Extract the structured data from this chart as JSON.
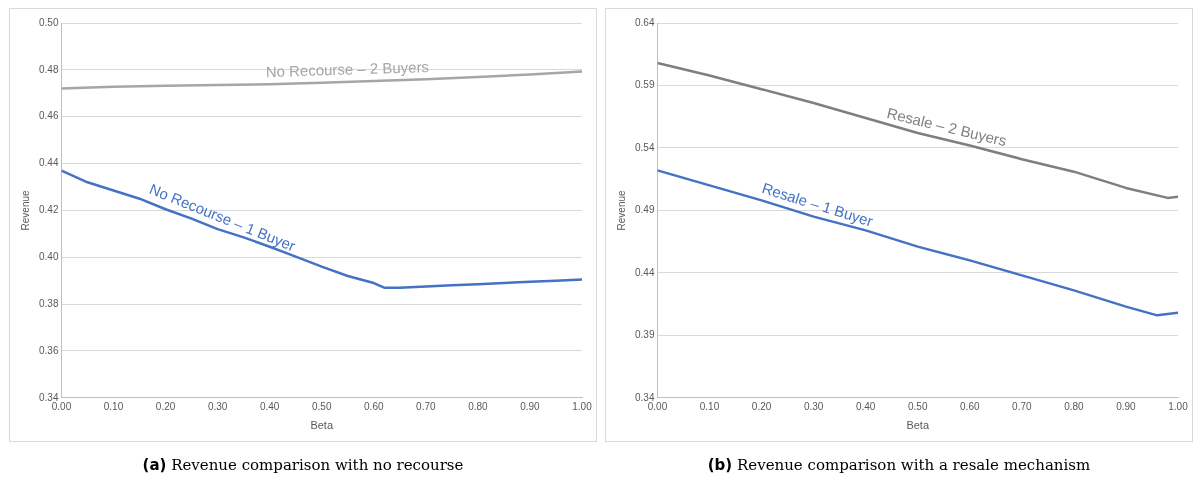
{
  "chart_data": [
    {
      "type": "line",
      "title": "(a) Revenue comparison with no recourse",
      "xlabel": "Beta",
      "ylabel": "Revenue",
      "xlim": [
        0,
        1
      ],
      "xticks": [
        {
          "value": 0,
          "label": "0.00"
        },
        {
          "value": 0.1,
          "label": "0.10"
        },
        {
          "value": 0.2,
          "label": "0.20"
        },
        {
          "value": 0.3,
          "label": "0.30"
        },
        {
          "value": 0.4,
          "label": "0.40"
        },
        {
          "value": 0.5,
          "label": "0.50"
        },
        {
          "value": 0.6,
          "label": "0.60"
        },
        {
          "value": 0.7,
          "label": "0.70"
        },
        {
          "value": 0.8,
          "label": "0.80"
        },
        {
          "value": 0.9,
          "label": "0.90"
        },
        {
          "value": 1,
          "label": "1.00"
        }
      ],
      "ylim": [
        0.34,
        0.5
      ],
      "yticks": [
        0.34,
        0.36,
        0.38,
        {
          "value": 0.4,
          "label": "0.40"
        },
        0.42,
        0.44,
        0.46,
        0.48,
        {
          "value": 0.5,
          "label": "0.50"
        }
      ],
      "grid": "y",
      "legend": false,
      "marker": "none",
      "line_style": "solid",
      "series": [
        {
          "name": "No Recourse – 2 Buyers",
          "color": "#a6a6a6",
          "x": [
            0,
            0.1,
            0.2,
            0.3,
            0.4,
            0.5,
            0.6,
            0.7,
            0.8,
            0.9,
            1
          ],
          "values": [
            0.472,
            0.4728,
            0.4732,
            0.4735,
            0.4738,
            0.4745,
            0.4752,
            0.476,
            0.477,
            0.478,
            0.4793
          ]
        },
        {
          "name": "No Recourse – 1 Buyer",
          "color": "#4472c4",
          "x": [
            0,
            0.05,
            0.1,
            0.15,
            0.2,
            0.25,
            0.3,
            0.35,
            0.4,
            0.45,
            0.5,
            0.55,
            0.6,
            0.62,
            0.65,
            0.7,
            0.75,
            0.8,
            0.85,
            0.9,
            0.95,
            1
          ],
          "values": [
            0.437,
            0.432,
            0.4285,
            0.425,
            0.4205,
            0.4165,
            0.412,
            0.4085,
            0.4045,
            0.4003,
            0.396,
            0.392,
            0.389,
            0.387,
            0.387,
            0.3875,
            0.388,
            0.3885,
            0.389,
            0.3895,
            0.39,
            0.3905
          ]
        }
      ]
    },
    {
      "type": "line",
      "title": "(b) Revenue comparison with a resale mechanism",
      "xlabel": "Beta",
      "ylabel": "Revenue",
      "xlim": [
        0,
        1
      ],
      "xticks": [
        {
          "value": 0,
          "label": "0.00"
        },
        {
          "value": 0.1,
          "label": "0.10"
        },
        {
          "value": 0.2,
          "label": "0.20"
        },
        {
          "value": 0.3,
          "label": "0.30"
        },
        {
          "value": 0.4,
          "label": "0.40"
        },
        {
          "value": 0.5,
          "label": "0.50"
        },
        {
          "value": 0.6,
          "label": "0.60"
        },
        {
          "value": 0.7,
          "label": "0.70"
        },
        {
          "value": 0.8,
          "label": "0.80"
        },
        {
          "value": 0.9,
          "label": "0.90"
        },
        {
          "value": 1,
          "label": "1.00"
        }
      ],
      "ylim": [
        0.34,
        0.64
      ],
      "yticks": [
        0.34,
        0.39,
        0.44,
        0.49,
        0.54,
        0.59,
        0.64
      ],
      "grid": "y",
      "legend": false,
      "marker": "none",
      "line_style": "solid",
      "series": [
        {
          "name": "Resale – 2 Buyers",
          "color": "#7f7f7f",
          "x": [
            0,
            0.1,
            0.2,
            0.3,
            0.4,
            0.5,
            0.6,
            0.7,
            0.8,
            0.9,
            0.98,
            1
          ],
          "values": [
            0.608,
            0.598,
            0.587,
            0.576,
            0.564,
            0.552,
            0.542,
            0.531,
            0.521,
            0.508,
            0.5,
            0.501
          ]
        },
        {
          "name": "Resale – 1 Buyer",
          "color": "#4472c4",
          "x": [
            0,
            0.1,
            0.2,
            0.3,
            0.4,
            0.5,
            0.6,
            0.7,
            0.8,
            0.9,
            0.96,
            1
          ],
          "values": [
            0.522,
            0.51,
            0.498,
            0.485,
            0.474,
            0.461,
            0.45,
            0.438,
            0.426,
            0.413,
            0.406,
            0.408
          ]
        }
      ]
    }
  ]
}
